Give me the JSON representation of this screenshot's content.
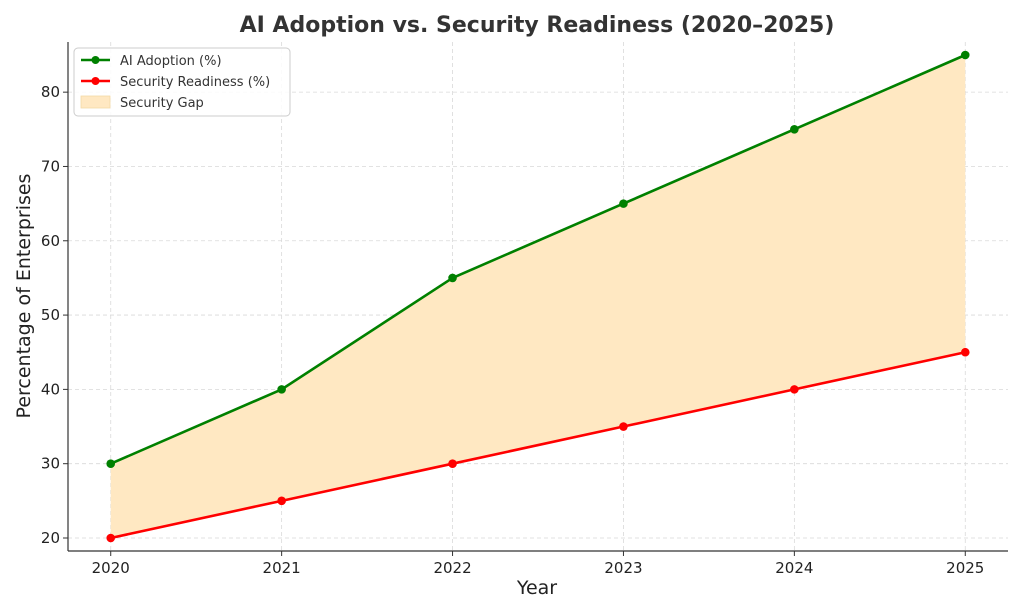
{
  "chart_data": {
    "type": "line",
    "title": "AI Adoption vs. Security Readiness (2020–2025)",
    "xlabel": "Year",
    "ylabel": "Percentage of Enterprises",
    "x": [
      2020,
      2021,
      2022,
      2023,
      2024,
      2025
    ],
    "xticks": [
      "2020",
      "2021",
      "2022",
      "2023",
      "2024",
      "2025"
    ],
    "yticks": [
      "20",
      "30",
      "40",
      "50",
      "60",
      "70",
      "80"
    ],
    "ylim": [
      18.25,
      86.75
    ],
    "grid": true,
    "legend_position": "top-left",
    "series": [
      {
        "name": "AI Adoption (%)",
        "values": [
          30,
          40,
          55,
          65,
          75,
          85
        ],
        "color": "#008000"
      },
      {
        "name": "Security Readiness (%)",
        "values": [
          20,
          25,
          30,
          35,
          40,
          45
        ],
        "color": "#ff0000"
      }
    ],
    "area": {
      "name": "Security Gap",
      "between": [
        "AI Adoption (%)",
        "Security Readiness (%)"
      ],
      "color": "#ffe8c2"
    }
  }
}
